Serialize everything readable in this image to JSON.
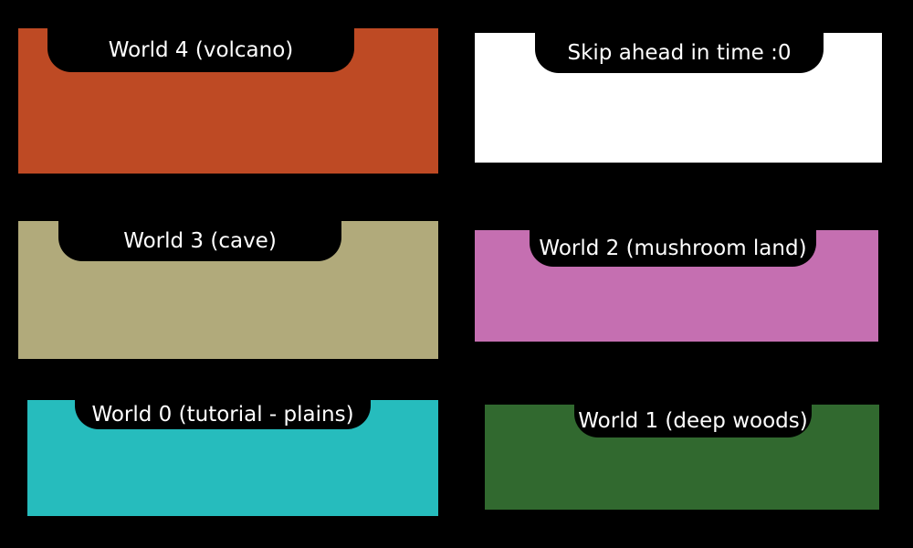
{
  "tiles": [
    {
      "id": "w4",
      "label": "World 4 (volcano)",
      "color": "#be4a24"
    },
    {
      "id": "skip",
      "label": "Skip ahead in time :0",
      "color": "#ffffff"
    },
    {
      "id": "w3",
      "label": "World 3 (cave)",
      "color": "#b1aa7b"
    },
    {
      "id": "w2",
      "label": "World 2 (mushroom land)",
      "color": "#c56fb1"
    },
    {
      "id": "w0",
      "label": "World 0 (tutorial - plains)",
      "color": "#26bcbd"
    },
    {
      "id": "w1",
      "label": "World 1 (deep woods)",
      "color": "#31692f"
    }
  ]
}
